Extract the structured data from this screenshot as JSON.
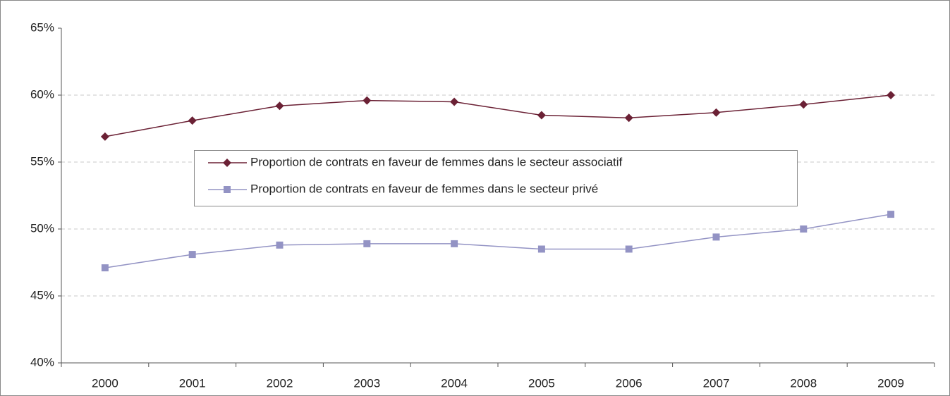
{
  "chart_data": {
    "type": "line",
    "categories": [
      "2000",
      "2001",
      "2002",
      "2003",
      "2004",
      "2005",
      "2006",
      "2007",
      "2008",
      "2009"
    ],
    "series": [
      {
        "name": "Proportion de contrats en faveur de femmes dans le secteur associatif",
        "color": "#6b2135",
        "marker": "diamond",
        "values": [
          56.9,
          58.1,
          59.2,
          59.6,
          59.5,
          58.5,
          58.3,
          58.7,
          59.3,
          60.0
        ]
      },
      {
        "name": "Proportion de contrats en faveur de femmes dans le secteur privé",
        "color": "#9393c4",
        "marker": "square",
        "values": [
          47.1,
          48.1,
          48.8,
          48.9,
          48.9,
          48.5,
          48.5,
          49.4,
          50.0,
          51.1
        ]
      }
    ],
    "ylim": [
      40,
      65
    ],
    "yticks": [
      {
        "value": 40,
        "label": "40%"
      },
      {
        "value": 45,
        "label": "45%"
      },
      {
        "value": 50,
        "label": "50%"
      },
      {
        "value": 55,
        "label": "55%"
      },
      {
        "value": 60,
        "label": "60%"
      },
      {
        "value": 65,
        "label": "65%"
      }
    ],
    "grid": true
  }
}
